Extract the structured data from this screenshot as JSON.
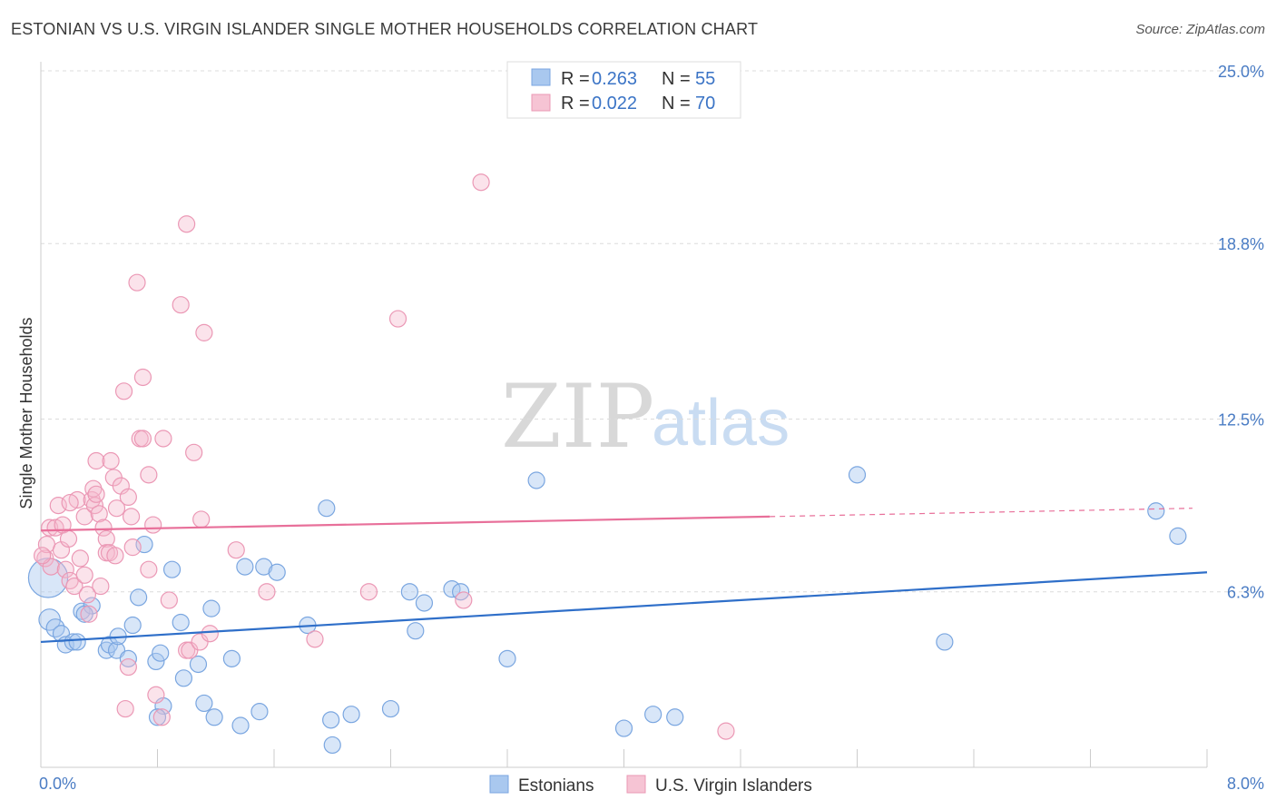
{
  "title": "ESTONIAN VS U.S. VIRGIN ISLANDER SINGLE MOTHER HOUSEHOLDS CORRELATION CHART",
  "source": "Source: ZipAtlas.com",
  "watermark": {
    "zip": "ZIP",
    "atlas": "atlas"
  },
  "legend": {
    "rows": [
      {
        "r_label": "R =",
        "r_value": "0.263",
        "n_label": "N =",
        "n_value": "55"
      },
      {
        "r_label": "R =",
        "r_value": "0.022",
        "n_label": "N =",
        "n_value": "70"
      }
    ]
  },
  "bottom_legend": [
    "Estonians",
    "U.S. Virgin Islanders"
  ],
  "chart_data": {
    "type": "scatter",
    "title": "ESTONIAN VS U.S. VIRGIN ISLANDER SINGLE MOTHER HOUSEHOLDS CORRELATION CHART",
    "xlabel": "",
    "ylabel": "Single Mother Households",
    "xlim": [
      0,
      8.0
    ],
    "ylim": [
      0,
      25.0
    ],
    "x_tick_labels": [
      "0.0%",
      "8.0%"
    ],
    "y_ticks": [
      6.3,
      12.5,
      18.8,
      25.0
    ],
    "y_tick_labels": [
      "6.3%",
      "12.5%",
      "18.8%",
      "25.0%"
    ],
    "grid": "horizontal dashed",
    "legend_position": "top-center",
    "colors": {
      "estonians": "#a9c8ef",
      "estonians_line": "#2f6fc9",
      "virgin": "#f6b8cc",
      "virgin_line": "#e8709a"
    },
    "series": [
      {
        "name": "Estonians",
        "trend": {
          "x0": 0.0,
          "y0": 4.5,
          "x1": 8.0,
          "y1": 7.0
        },
        "points": [
          [
            0.05,
            6.8,
            24
          ],
          [
            0.06,
            5.3,
            13
          ],
          [
            0.1,
            5.0,
            11
          ],
          [
            0.14,
            4.8,
            10
          ],
          [
            0.17,
            4.4,
            10
          ],
          [
            0.22,
            4.5,
            10
          ],
          [
            0.25,
            4.5,
            10
          ],
          [
            0.28,
            5.6,
            10
          ],
          [
            0.35,
            5.8,
            10
          ],
          [
            0.3,
            5.5,
            10
          ],
          [
            0.45,
            4.2,
            10
          ],
          [
            0.47,
            4.4,
            10
          ],
          [
            0.52,
            4.2,
            10
          ],
          [
            0.53,
            4.7,
            10
          ],
          [
            0.6,
            3.9,
            10
          ],
          [
            0.63,
            5.1,
            10
          ],
          [
            0.67,
            6.1,
            10
          ],
          [
            0.71,
            8.0,
            10
          ],
          [
            0.79,
            3.8,
            10
          ],
          [
            0.82,
            4.1,
            10
          ],
          [
            0.84,
            2.2,
            10
          ],
          [
            0.8,
            1.8,
            10
          ],
          [
            0.9,
            7.1,
            10
          ],
          [
            0.96,
            5.2,
            10
          ],
          [
            0.98,
            3.2,
            10
          ],
          [
            1.08,
            3.7,
            10
          ],
          [
            1.12,
            2.3,
            10
          ],
          [
            1.19,
            1.8,
            10
          ],
          [
            1.17,
            5.7,
            10
          ],
          [
            1.31,
            3.9,
            10
          ],
          [
            1.37,
            1.5,
            10
          ],
          [
            1.4,
            7.2,
            10
          ],
          [
            1.5,
            2.0,
            10
          ],
          [
            1.53,
            7.2,
            10
          ],
          [
            1.62,
            7.0,
            10
          ],
          [
            1.83,
            5.1,
            10
          ],
          [
            1.96,
            9.3,
            10
          ],
          [
            1.99,
            1.7,
            10
          ],
          [
            2.0,
            0.8,
            10
          ],
          [
            2.13,
            1.9,
            10
          ],
          [
            2.4,
            2.1,
            10
          ],
          [
            2.53,
            6.3,
            10
          ],
          [
            2.57,
            4.9,
            10
          ],
          [
            2.63,
            5.9,
            10
          ],
          [
            2.82,
            6.4,
            10
          ],
          [
            2.88,
            6.3,
            10
          ],
          [
            3.2,
            3.9,
            10
          ],
          [
            3.4,
            10.3,
            10
          ],
          [
            4.0,
            1.4,
            10
          ],
          [
            4.2,
            1.9,
            10
          ],
          [
            4.35,
            1.8,
            10
          ],
          [
            5.6,
            10.5,
            10
          ],
          [
            6.2,
            4.5,
            10
          ],
          [
            7.65,
            9.2,
            10
          ],
          [
            7.8,
            8.3,
            10
          ]
        ]
      },
      {
        "name": "U.S. Virgin Islanders",
        "trend": {
          "x0": 0.0,
          "y0": 8.5,
          "x1": 5.0,
          "y1": 9.0,
          "dashed_to_x": 7.9,
          "dashed_to_y": 9.3
        },
        "points": [
          [
            0.03,
            7.5,
            10
          ],
          [
            0.04,
            8.0,
            10
          ],
          [
            0.06,
            8.6,
            10
          ],
          [
            0.07,
            7.2,
            10
          ],
          [
            0.1,
            8.6,
            10
          ],
          [
            0.12,
            9.4,
            10
          ],
          [
            0.14,
            7.8,
            10
          ],
          [
            0.15,
            8.7,
            10
          ],
          [
            0.17,
            7.1,
            10
          ],
          [
            0.19,
            8.2,
            10
          ],
          [
            0.2,
            6.7,
            10
          ],
          [
            0.23,
            6.5,
            10
          ],
          [
            0.25,
            9.6,
            10
          ],
          [
            0.27,
            7.5,
            10
          ],
          [
            0.3,
            9.0,
            10
          ],
          [
            0.3,
            6.9,
            10
          ],
          [
            0.32,
            6.2,
            10
          ],
          [
            0.33,
            5.5,
            10
          ],
          [
            0.35,
            9.6,
            10
          ],
          [
            0.36,
            10.0,
            10
          ],
          [
            0.37,
            9.4,
            10
          ],
          [
            0.38,
            9.8,
            10
          ],
          [
            0.38,
            11.0,
            10
          ],
          [
            0.4,
            9.1,
            10
          ],
          [
            0.41,
            6.5,
            10
          ],
          [
            0.43,
            8.6,
            10
          ],
          [
            0.45,
            8.2,
            10
          ],
          [
            0.45,
            7.7,
            10
          ],
          [
            0.47,
            7.7,
            10
          ],
          [
            0.48,
            11.0,
            10
          ],
          [
            0.5,
            10.4,
            10
          ],
          [
            0.51,
            7.6,
            10
          ],
          [
            0.52,
            9.3,
            10
          ],
          [
            0.55,
            10.1,
            10
          ],
          [
            0.57,
            13.5,
            10
          ],
          [
            0.6,
            3.6,
            10
          ],
          [
            0.58,
            2.1,
            10
          ],
          [
            0.6,
            9.7,
            10
          ],
          [
            0.62,
            9.0,
            10
          ],
          [
            0.63,
            7.9,
            10
          ],
          [
            0.66,
            17.4,
            10
          ],
          [
            0.68,
            11.8,
            10
          ],
          [
            0.7,
            11.8,
            10
          ],
          [
            0.7,
            14.0,
            10
          ],
          [
            0.74,
            10.5,
            10
          ],
          [
            0.74,
            7.1,
            10
          ],
          [
            0.77,
            8.7,
            10
          ],
          [
            0.79,
            2.6,
            10
          ],
          [
            0.83,
            1.8,
            10
          ],
          [
            0.84,
            11.8,
            10
          ],
          [
            0.88,
            6.0,
            10
          ],
          [
            0.96,
            16.6,
            10
          ],
          [
            1.0,
            4.2,
            10
          ],
          [
            1.0,
            19.5,
            10
          ],
          [
            1.02,
            4.2,
            10
          ],
          [
            1.05,
            11.3,
            10
          ],
          [
            1.09,
            4.5,
            10
          ],
          [
            1.1,
            8.9,
            10
          ],
          [
            1.12,
            15.6,
            10
          ],
          [
            1.16,
            4.8,
            10
          ],
          [
            1.34,
            7.8,
            10
          ],
          [
            1.55,
            6.3,
            10
          ],
          [
            1.88,
            4.6,
            10
          ],
          [
            2.25,
            6.3,
            10
          ],
          [
            2.45,
            16.1,
            10
          ],
          [
            2.9,
            6.0,
            10
          ],
          [
            3.02,
            21.0,
            10
          ],
          [
            4.7,
            1.3,
            10
          ],
          [
            0.01,
            7.6,
            10
          ],
          [
            0.2,
            9.5,
            10
          ]
        ]
      }
    ]
  }
}
